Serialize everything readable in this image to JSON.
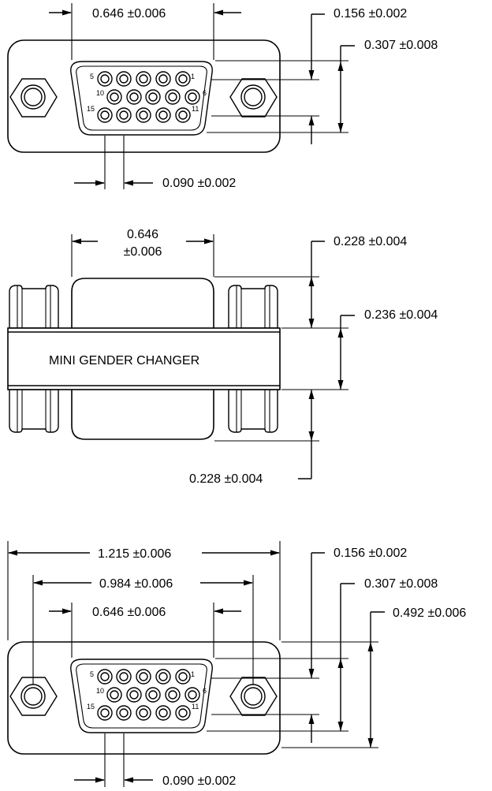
{
  "views": {
    "top": {
      "shell_width": "0.646  ±0.006",
      "pin_row_pitch": "0.156  ±0.002",
      "shell_height": "0.307  ±0.008",
      "pin_pitch": "0.090  ±0.002",
      "pin_labels": {
        "p1": "1",
        "p5": "5",
        "p6": "6",
        "p10": "10",
        "p11": "11",
        "p15": "15"
      }
    },
    "side": {
      "shell_width_value": "0.646",
      "shell_width_tol": "±0.006",
      "upper_shell_depth": "0.228  ±0.004",
      "band_thickness": "0.236  ±0.004",
      "lower_shell_depth": "0.228  ±0.004",
      "band_label": "MINI GENDER CHANGER"
    },
    "bottom": {
      "overall_width": "1.215 ±0.006",
      "hole_spacing": "0.984 ±0.006",
      "shell_width": "0.646  ±0.006",
      "pin_row_pitch": "0.156  ±0.002",
      "shell_height": "0.307  ±0.008",
      "flange_height": "0.492  ±0.006",
      "pin_pitch": "0.090  ±0.002",
      "pin_labels": {
        "p1": "1",
        "p5": "5",
        "p6": "6",
        "p10": "10",
        "p11": "11",
        "p15": "15"
      }
    }
  }
}
